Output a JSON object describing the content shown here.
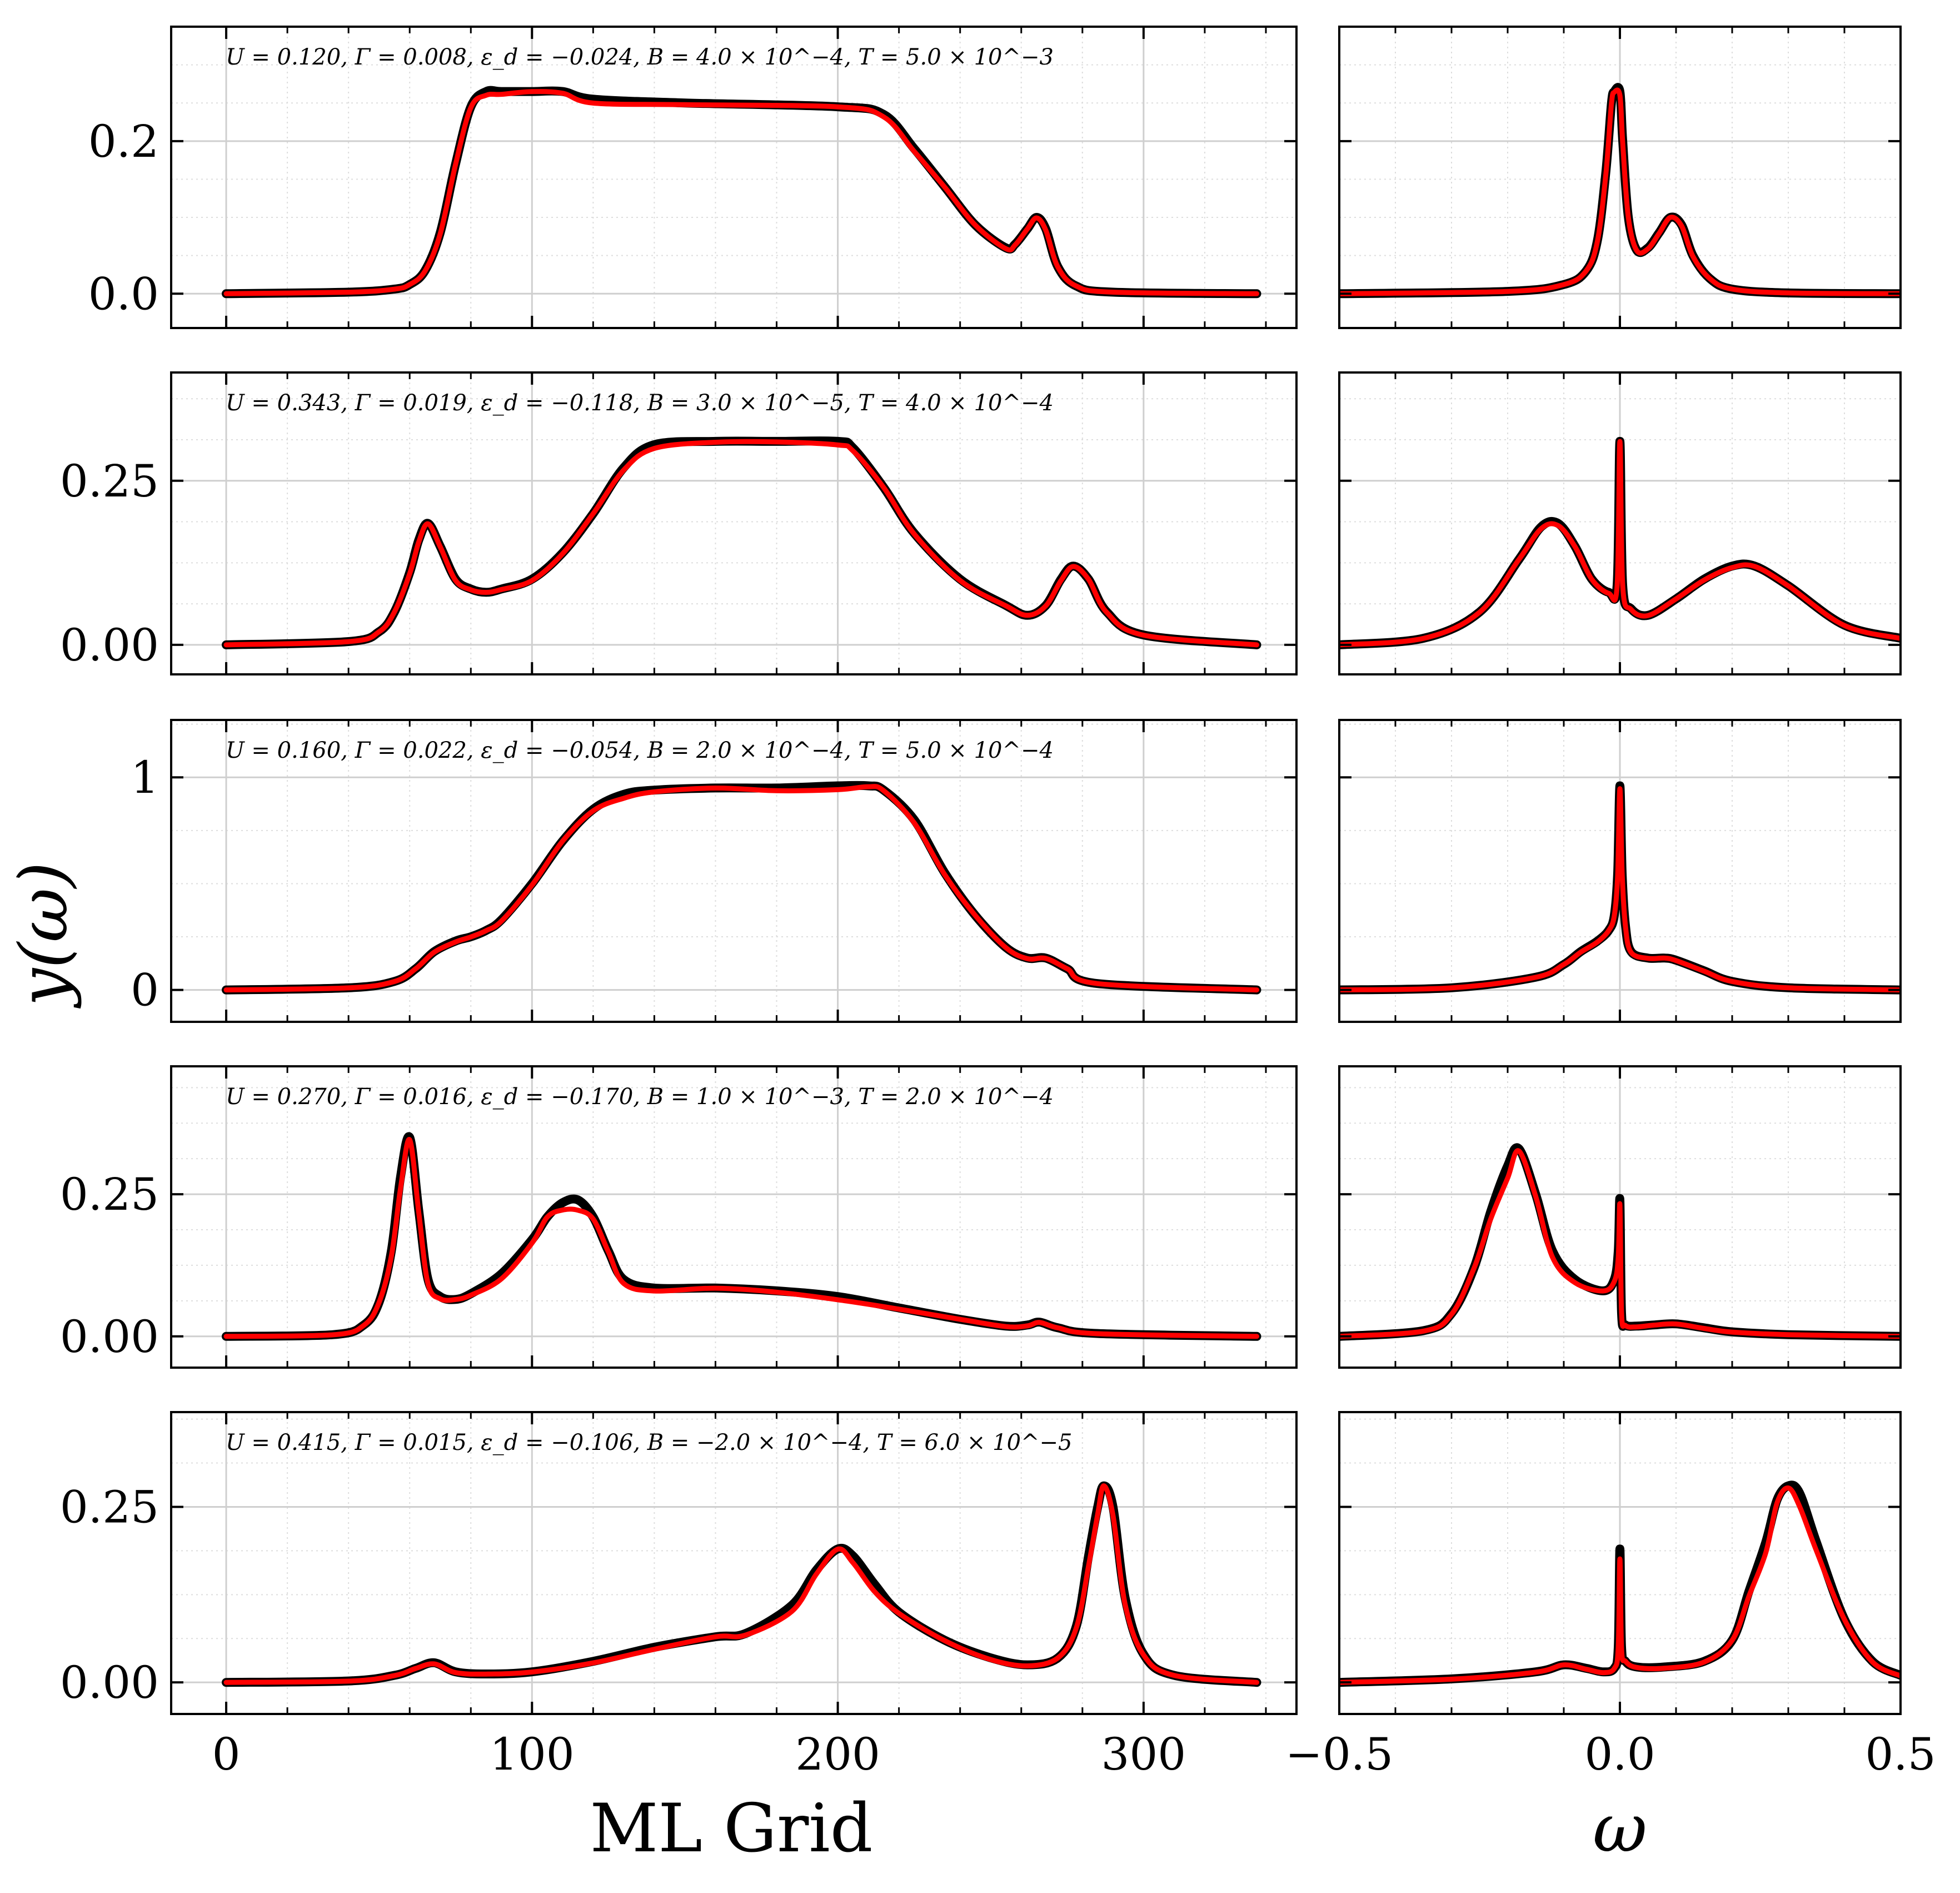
{
  "chart_data": {
    "type": "line",
    "ylabel": "y(ω)",
    "left_xlabel": "ML Grid",
    "right_xlabel": "ω",
    "left_xlim": [
      -18,
      350
    ],
    "left_xticks": [
      "0",
      "100",
      "200",
      "300"
    ],
    "right_xlim": [
      -0.5,
      0.5
    ],
    "right_xticks": [
      "−0.5",
      "0.0",
      "0.5"
    ],
    "grid": true,
    "series_colors": [
      "#000000",
      "#ff0000"
    ],
    "panels": [
      {
        "annotation": "U = 0.120,  Γ = 0.008,  ε_d = −0.024,  B = 4.0 × 10^−4,  T = 5.0 × 10^−3",
        "ylim": [
          -0.045,
          0.35
        ],
        "yticks": [
          "0.0",
          "0.2"
        ],
        "ytick_values": [
          0.0,
          0.2
        ],
        "left_x": [
          0,
          40,
          55,
          60,
          65,
          70,
          75,
          80,
          85,
          90,
          100,
          110,
          120,
          150,
          200,
          215,
          225,
          235,
          245,
          255,
          258,
          262,
          265,
          268,
          272,
          278,
          290,
          337
        ],
        "left_y": [
          0,
          0.002,
          0.006,
          0.012,
          0.03,
          0.08,
          0.17,
          0.245,
          0.265,
          0.265,
          0.265,
          0.265,
          0.255,
          0.25,
          0.245,
          0.235,
          0.19,
          0.14,
          0.09,
          0.06,
          0.065,
          0.085,
          0.1,
          0.085,
          0.035,
          0.01,
          0.002,
          0
        ],
        "right_x": [
          -0.5,
          -0.2,
          -0.1,
          -0.06,
          -0.04,
          -0.025,
          -0.015,
          -0.01,
          0.0,
          0.005,
          0.015,
          0.03,
          0.05,
          0.07,
          0.09,
          0.11,
          0.13,
          0.16,
          0.2,
          0.3,
          0.5
        ],
        "right_y": [
          0,
          0.003,
          0.012,
          0.03,
          0.07,
          0.16,
          0.25,
          0.265,
          0.265,
          0.2,
          0.1,
          0.057,
          0.06,
          0.08,
          0.1,
          0.09,
          0.05,
          0.02,
          0.006,
          0.001,
          0
        ]
      },
      {
        "annotation": "U = 0.343,  Γ = 0.019,  ε_d = −0.118,  B = 3.0 × 10^−5,  T = 4.0 × 10^−4",
        "ylim": [
          -0.045,
          0.415
        ],
        "yticks": [
          "0.00",
          "0.25"
        ],
        "ytick_values": [
          0.0,
          0.25
        ],
        "left_x": [
          0,
          40,
          50,
          55,
          60,
          63,
          66,
          70,
          75,
          80,
          85,
          90,
          100,
          110,
          120,
          130,
          140,
          160,
          180,
          200,
          205,
          215,
          225,
          240,
          255,
          262,
          268,
          273,
          277,
          282,
          288,
          300,
          337
        ],
        "left_y": [
          0,
          0.005,
          0.02,
          0.05,
          0.11,
          0.16,
          0.185,
          0.15,
          0.1,
          0.085,
          0.08,
          0.085,
          0.1,
          0.14,
          0.2,
          0.27,
          0.305,
          0.31,
          0.31,
          0.31,
          0.3,
          0.24,
          0.17,
          0.1,
          0.06,
          0.045,
          0.06,
          0.1,
          0.12,
          0.1,
          0.05,
          0.015,
          0
        ],
        "right_x": [
          -0.5,
          -0.35,
          -0.25,
          -0.18,
          -0.14,
          -0.11,
          -0.08,
          -0.05,
          -0.02,
          -0.005,
          0.0,
          0.005,
          0.02,
          0.05,
          0.1,
          0.15,
          0.2,
          0.24,
          0.3,
          0.4,
          0.5
        ],
        "right_y": [
          0,
          0.01,
          0.05,
          0.13,
          0.18,
          0.185,
          0.15,
          0.1,
          0.08,
          0.09,
          0.31,
          0.09,
          0.055,
          0.045,
          0.07,
          0.1,
          0.12,
          0.12,
          0.09,
          0.03,
          0.01
        ]
      },
      {
        "annotation": "U = 0.160,  Γ = 0.022,  ε_d = −0.054,  B = 2.0 × 10^−4,  T = 5.0 × 10^−4",
        "ylim": [
          -0.15,
          1.27
        ],
        "yticks": [
          "0",
          "1"
        ],
        "ytick_values": [
          0,
          1
        ],
        "left_x": [
          0,
          40,
          55,
          62,
          68,
          75,
          80,
          85,
          90,
          100,
          110,
          120,
          130,
          140,
          160,
          180,
          200,
          210,
          215,
          225,
          235,
          245,
          255,
          262,
          268,
          275,
          285,
          337
        ],
        "left_y": [
          0,
          0.01,
          0.04,
          0.1,
          0.18,
          0.23,
          0.25,
          0.28,
          0.33,
          0.5,
          0.7,
          0.85,
          0.92,
          0.94,
          0.95,
          0.95,
          0.96,
          0.96,
          0.94,
          0.8,
          0.55,
          0.35,
          0.2,
          0.15,
          0.15,
          0.1,
          0.03,
          0
        ],
        "right_x": [
          -0.5,
          -0.3,
          -0.15,
          -0.1,
          -0.07,
          -0.04,
          -0.02,
          -0.01,
          -0.004,
          0.0,
          0.004,
          0.01,
          0.02,
          0.05,
          0.08,
          0.1,
          0.15,
          0.2,
          0.3,
          0.5
        ],
        "right_y": [
          0,
          0.01,
          0.06,
          0.12,
          0.18,
          0.23,
          0.28,
          0.35,
          0.55,
          0.96,
          0.55,
          0.3,
          0.18,
          0.15,
          0.15,
          0.14,
          0.09,
          0.04,
          0.01,
          0
        ]
      },
      {
        "annotation": "U = 0.270,  Γ = 0.016,  ε_d = −0.170,  B = 1.0 × 10^−3,  T = 2.0 × 10^−4",
        "ylim": [
          -0.055,
          0.475
        ],
        "yticks": [
          "0.00",
          "0.25"
        ],
        "ytick_values": [
          0.0,
          0.25
        ],
        "left_x": [
          0,
          35,
          45,
          50,
          54,
          57,
          60,
          63,
          66,
          70,
          75,
          80,
          90,
          100,
          105,
          110,
          115,
          120,
          125,
          130,
          140,
          160,
          180,
          200,
          220,
          240,
          255,
          262,
          266,
          272,
          285,
          337
        ],
        "left_y": [
          0,
          0.003,
          0.02,
          0.06,
          0.15,
          0.28,
          0.35,
          0.22,
          0.1,
          0.07,
          0.065,
          0.075,
          0.11,
          0.17,
          0.21,
          0.235,
          0.24,
          0.21,
          0.15,
          0.1,
          0.085,
          0.085,
          0.08,
          0.07,
          0.05,
          0.03,
          0.018,
          0.02,
          0.025,
          0.015,
          0.005,
          0
        ],
        "right_x": [
          -0.5,
          -0.35,
          -0.3,
          -0.26,
          -0.23,
          -0.2,
          -0.18,
          -0.15,
          -0.12,
          -0.08,
          -0.03,
          -0.01,
          -0.003,
          0.0,
          0.003,
          0.01,
          0.03,
          0.06,
          0.1,
          0.15,
          0.2,
          0.3,
          0.5
        ],
        "right_y": [
          0,
          0.01,
          0.04,
          0.12,
          0.22,
          0.3,
          0.33,
          0.25,
          0.15,
          0.1,
          0.08,
          0.1,
          0.15,
          0.24,
          0.04,
          0.02,
          0.018,
          0.02,
          0.022,
          0.015,
          0.008,
          0.003,
          0
        ]
      },
      {
        "annotation": "U = 0.415,  Γ = 0.015,  ε_d = −0.106,  B = −2.0 × 10^−4,  T = 6.0 × 10^−5",
        "ylim": [
          -0.045,
          0.385
        ],
        "yticks": [
          "0.00",
          "0.25"
        ],
        "ytick_values": [
          0.0,
          0.25
        ],
        "left_x": [
          0,
          40,
          55,
          62,
          68,
          75,
          85,
          100,
          120,
          140,
          160,
          170,
          185,
          193,
          200,
          205,
          212,
          220,
          235,
          250,
          262,
          272,
          278,
          282,
          285,
          287,
          290,
          294,
          300,
          310,
          337
        ],
        "left_y": [
          0,
          0.002,
          0.01,
          0.02,
          0.028,
          0.015,
          0.012,
          0.015,
          0.03,
          0.05,
          0.065,
          0.07,
          0.11,
          0.16,
          0.19,
          0.18,
          0.14,
          0.1,
          0.06,
          0.035,
          0.025,
          0.035,
          0.08,
          0.18,
          0.25,
          0.28,
          0.25,
          0.12,
          0.04,
          0.01,
          0
        ],
        "right_x": [
          -0.5,
          -0.3,
          -0.15,
          -0.1,
          -0.06,
          -0.03,
          -0.01,
          -0.003,
          0.0,
          0.003,
          0.01,
          0.03,
          0.08,
          0.15,
          0.2,
          0.23,
          0.26,
          0.28,
          0.3,
          0.32,
          0.35,
          0.4,
          0.45,
          0.5
        ],
        "right_y": [
          0,
          0.005,
          0.015,
          0.025,
          0.02,
          0.015,
          0.02,
          0.05,
          0.19,
          0.05,
          0.03,
          0.022,
          0.022,
          0.03,
          0.06,
          0.13,
          0.2,
          0.26,
          0.28,
          0.27,
          0.2,
          0.09,
          0.03,
          0.01
        ]
      }
    ]
  }
}
